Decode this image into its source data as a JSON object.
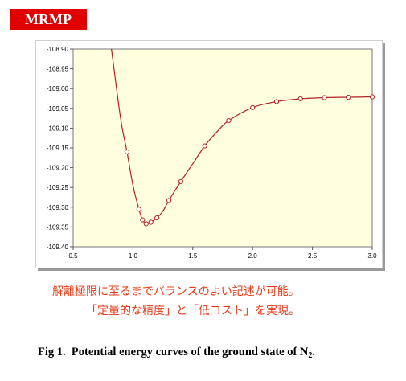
{
  "badge": "MRMP",
  "japanese_line1": "解離極限に至るまでバランスのよい記述が可能。",
  "japanese_line2": "「定量的な精度」と「低コスト」を実現。",
  "caption": {
    "prefix": "Fig 1.",
    "text": "Potential energy curves of the ground state of N",
    "subscript": "2",
    "suffix": "."
  },
  "colors": {
    "badge_bg": "#e00000",
    "plot_bg": "#ffffe0",
    "curve": "#b22222",
    "text_red": "#e63b17"
  },
  "chart_data": {
    "type": "line",
    "title": "",
    "xlabel": "",
    "ylabel": "",
    "xlim": [
      0.5,
      3.0
    ],
    "ylim": [
      -109.4,
      -108.9
    ],
    "xticks": [
      "0.5",
      "1.0",
      "1.5",
      "2.0",
      "2.5",
      "3.0"
    ],
    "yticks": [
      "-108.90",
      "-108.95",
      "-109.00",
      "-109.05",
      "-109.10",
      "-109.15",
      "-109.20",
      "-109.25",
      "-109.30",
      "-109.35",
      "-109.40"
    ],
    "grid": false,
    "series": [
      {
        "markers": {
          "x": [
            0.95,
            1.05,
            1.08,
            1.11,
            1.15,
            1.2,
            1.3,
            1.4,
            1.6,
            1.8,
            2.0,
            2.2,
            2.4,
            2.6,
            2.8,
            3.0
          ],
          "y": [
            -109.16,
            -109.305,
            -109.332,
            -109.342,
            -109.338,
            -109.327,
            -109.283,
            -109.235,
            -109.145,
            -109.081,
            -109.048,
            -109.033,
            -109.026,
            -109.023,
            -109.022,
            -109.021
          ]
        },
        "curve": {
          "x": [
            0.82,
            0.85,
            0.88,
            0.91,
            0.95,
            1.0,
            1.05,
            1.08,
            1.11,
            1.15,
            1.2,
            1.25,
            1.3,
            1.4,
            1.5,
            1.6,
            1.7,
            1.8,
            2.0,
            2.2,
            2.4,
            2.6,
            2.8,
            3.0
          ],
          "y": [
            -108.9,
            -108.97,
            -109.04,
            -109.1,
            -109.16,
            -109.245,
            -109.305,
            -109.332,
            -109.342,
            -109.338,
            -109.327,
            -109.31,
            -109.283,
            -109.235,
            -109.19,
            -109.145,
            -109.11,
            -109.081,
            -109.048,
            -109.033,
            -109.026,
            -109.023,
            -109.022,
            -109.021
          ]
        }
      }
    ]
  }
}
